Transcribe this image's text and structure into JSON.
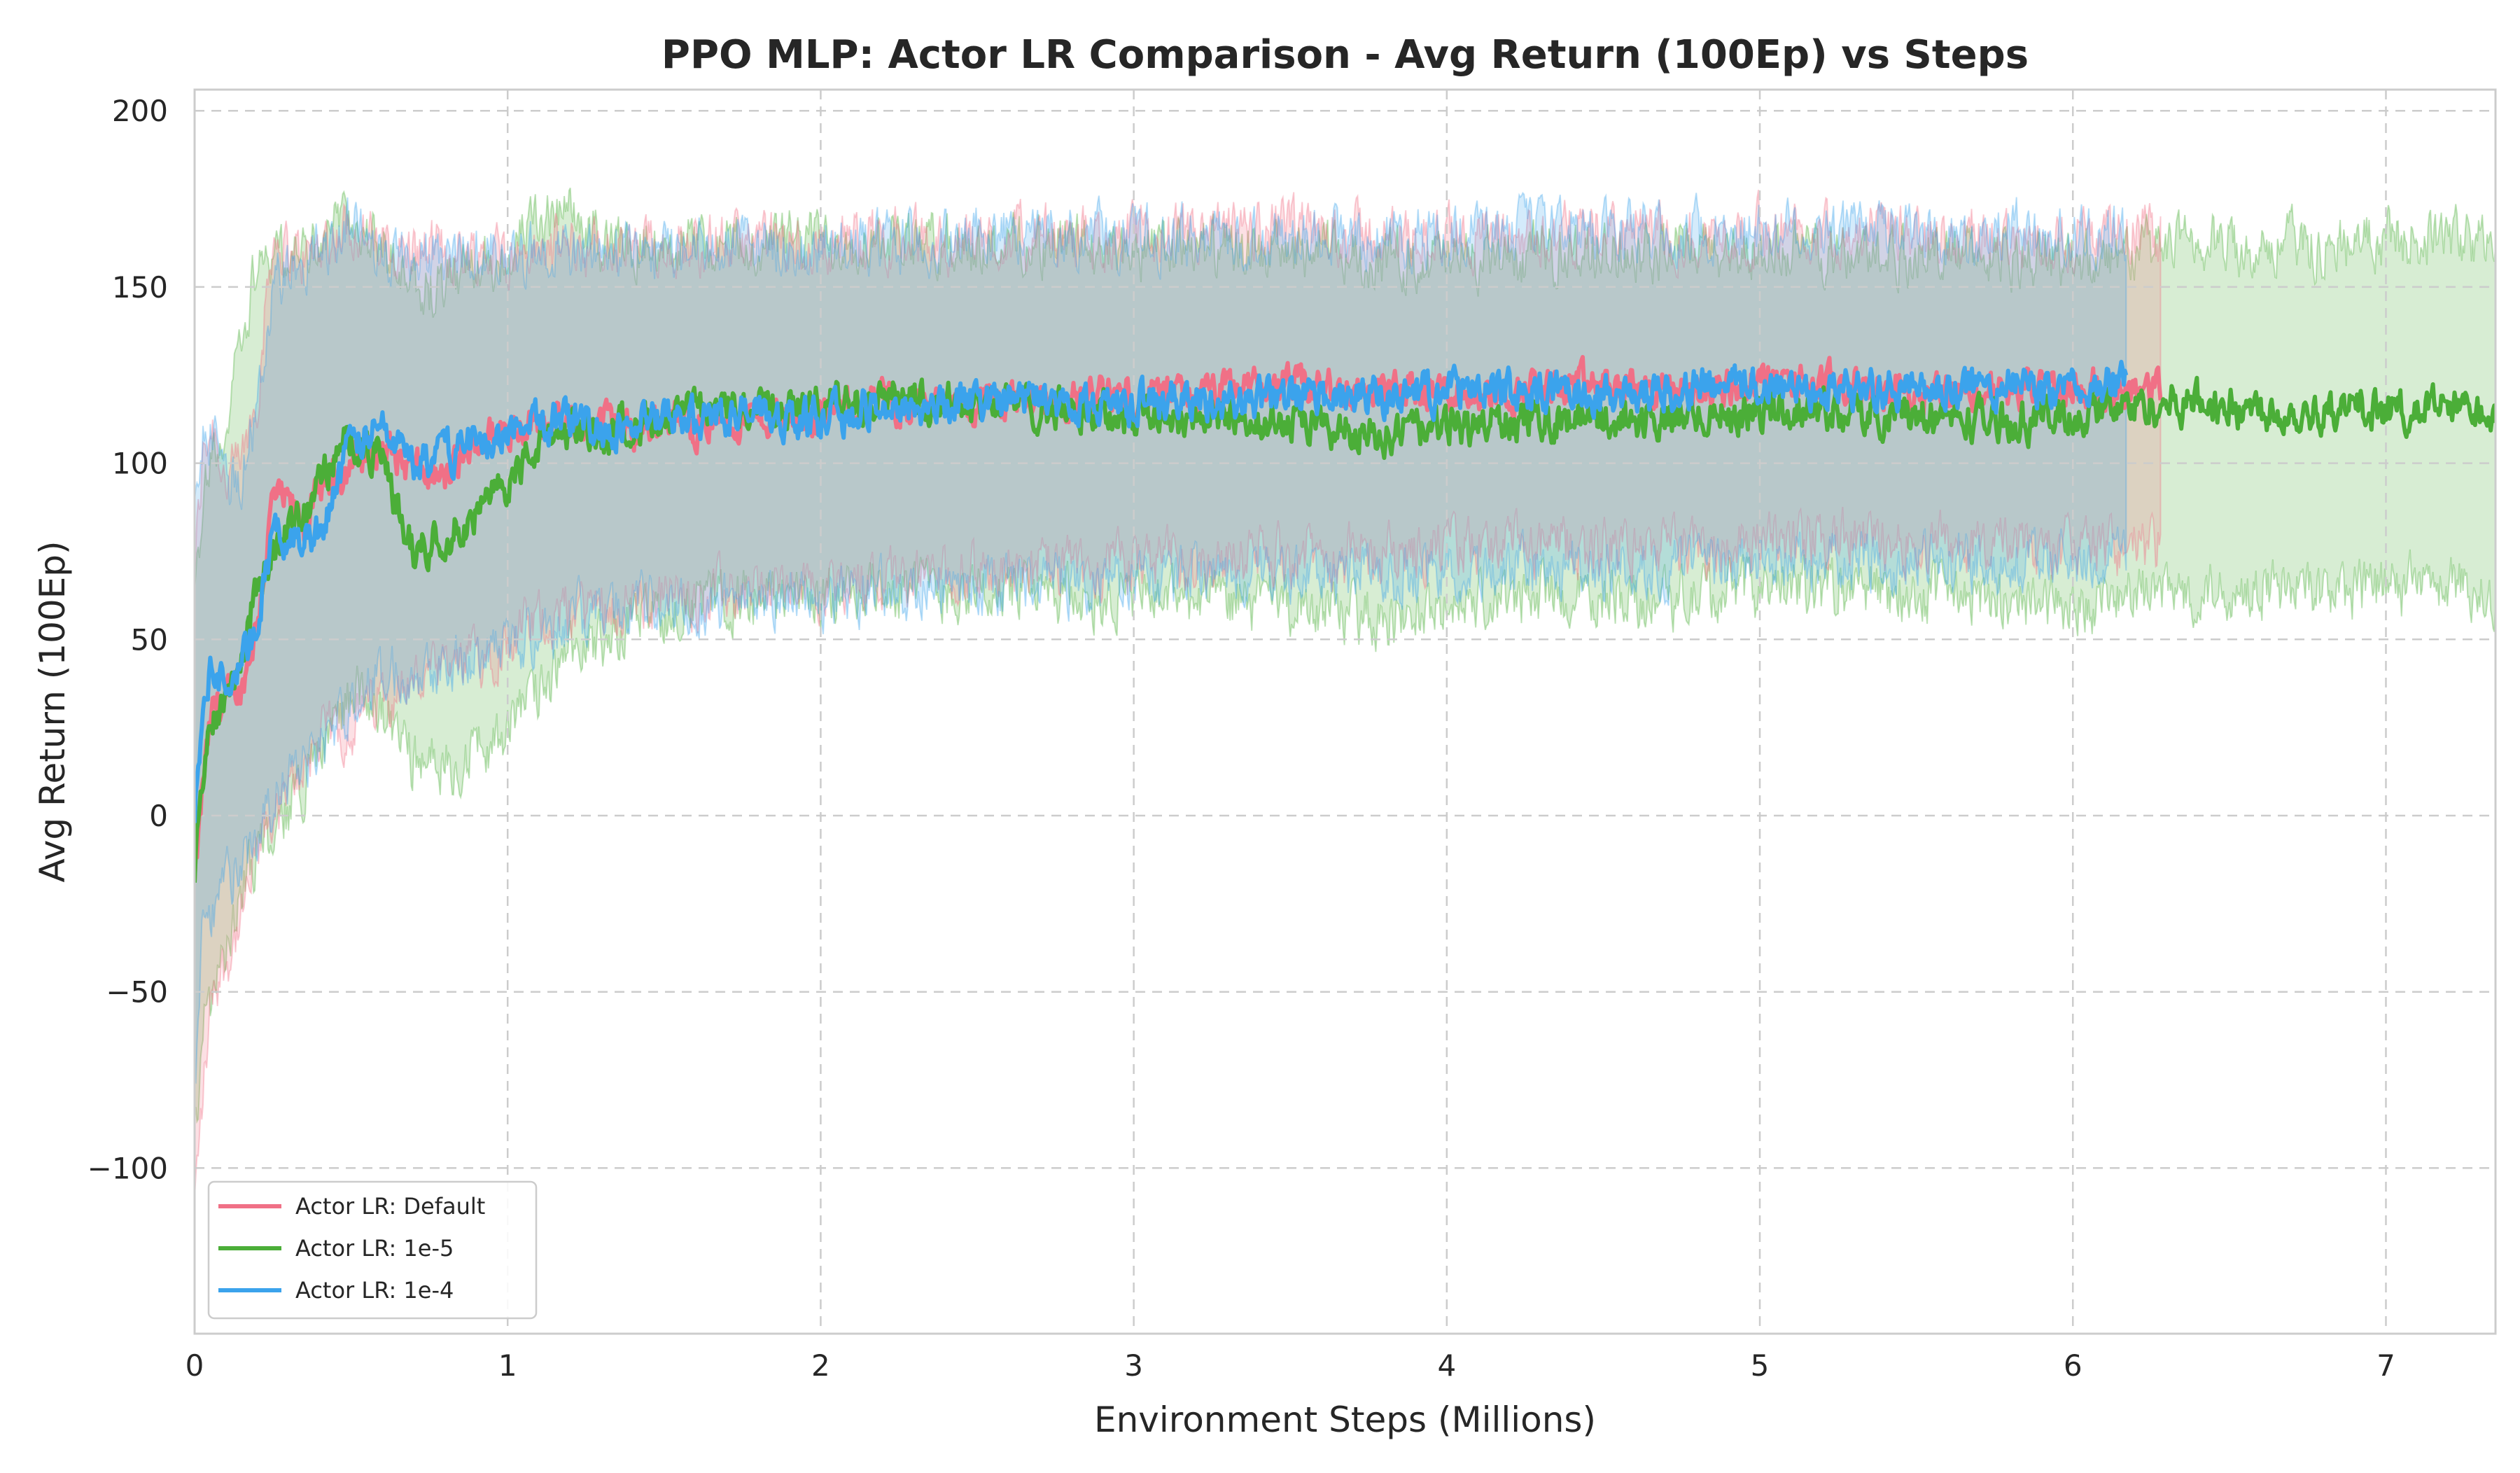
{
  "chart_data": {
    "type": "line",
    "title": "PPO MLP: Actor LR Comparison - Avg Return (100Ep) vs Steps",
    "xlabel": "Environment Steps (Millions)",
    "ylabel": "Avg Return (100Ep)",
    "xlim": [
      0,
      7.35
    ],
    "ylim": [
      -147,
      206
    ],
    "x_ticks": [
      0,
      1,
      2,
      3,
      4,
      5,
      6,
      7
    ],
    "x_tick_labels": [
      "0",
      "1",
      "2",
      "3",
      "4",
      "5",
      "6",
      "7"
    ],
    "y_ticks": [
      -100,
      -50,
      0,
      50,
      100,
      150,
      200
    ],
    "y_tick_labels": [
      "−100",
      "−50",
      "0",
      "50",
      "100",
      "150",
      "200"
    ],
    "grid": true,
    "legend_position": "bottom-left",
    "shaded_band": "mean ± std",
    "series": [
      {
        "name": "Actor LR: Default",
        "color": "#f07086",
        "x": [
          0,
          0.03,
          0.06,
          0.1,
          0.15,
          0.2,
          0.25,
          0.3,
          0.35,
          0.4,
          0.5,
          0.6,
          0.7,
          0.8,
          0.9,
          1.0,
          1.1,
          1.2,
          1.3,
          1.4,
          1.5,
          1.6,
          1.8,
          2.0,
          2.2,
          2.4,
          2.6,
          2.8,
          3.0,
          3.2,
          3.4,
          3.6,
          3.8,
          4.0,
          4.2,
          4.4,
          4.6,
          4.8,
          5.0,
          5.2,
          5.4,
          5.6,
          5.8,
          6.0,
          6.15,
          6.28
        ],
        "mean": [
          -20,
          12,
          30,
          33,
          36,
          55,
          90,
          88,
          82,
          92,
          100,
          105,
          98,
          95,
          106,
          110,
          113,
          110,
          112,
          109,
          113,
          111,
          113,
          114,
          117,
          116,
          118,
          118,
          119,
          119,
          122,
          121,
          120,
          121,
          120,
          122,
          121,
          120,
          123,
          122,
          121,
          121,
          120,
          121,
          122,
          120
        ],
        "upper": [
          70,
          105,
          112,
          95,
          100,
          120,
          165,
          160,
          158,
          162,
          168,
          160,
          160,
          160,
          160,
          160,
          160,
          162,
          160,
          160,
          162,
          162,
          162,
          162,
          164,
          162,
          164,
          164,
          164,
          164,
          166,
          166,
          164,
          165,
          164,
          166,
          166,
          164,
          166,
          166,
          166,
          164,
          164,
          164,
          165,
          165
        ],
        "lower": [
          -110,
          -75,
          -48,
          -42,
          -30,
          -12,
          0,
          5,
          15,
          22,
          25,
          35,
          38,
          40,
          45,
          50,
          55,
          58,
          60,
          60,
          62,
          62,
          64,
          65,
          68,
          68,
          70,
          70,
          72,
          72,
          74,
          74,
          74,
          76,
          76,
          76,
          76,
          76,
          78,
          78,
          78,
          78,
          76,
          76,
          76,
          76
        ]
      },
      {
        "name": "Actor LR: 1e-5",
        "color": "#4bae38",
        "x": [
          0,
          0.03,
          0.06,
          0.1,
          0.15,
          0.2,
          0.25,
          0.3,
          0.35,
          0.4,
          0.5,
          0.6,
          0.7,
          0.8,
          0.9,
          1.0,
          1.1,
          1.2,
          1.3,
          1.4,
          1.5,
          1.6,
          1.8,
          2.0,
          2.2,
          2.4,
          2.6,
          2.8,
          3.0,
          3.2,
          3.4,
          3.6,
          3.8,
          4.0,
          4.2,
          4.4,
          4.6,
          4.8,
          5.0,
          5.2,
          5.4,
          5.6,
          5.8,
          6.0,
          6.2,
          6.4,
          6.6,
          6.8,
          7.0,
          7.2,
          7.35
        ],
        "mean": [
          -15,
          15,
          28,
          35,
          45,
          65,
          75,
          82,
          85,
          95,
          108,
          100,
          75,
          80,
          85,
          95,
          105,
          110,
          108,
          112,
          110,
          115,
          116,
          116,
          120,
          118,
          117,
          115,
          114,
          113,
          112,
          110,
          108,
          110,
          112,
          113,
          112,
          114,
          115,
          115,
          114,
          113,
          112,
          113,
          117,
          117,
          115,
          115,
          115,
          116,
          115
        ],
        "upper": [
          60,
          95,
          105,
          110,
          135,
          158,
          160,
          158,
          160,
          164,
          170,
          160,
          150,
          150,
          155,
          160,
          168,
          170,
          162,
          162,
          164,
          162,
          162,
          164,
          164,
          162,
          162,
          162,
          160,
          160,
          160,
          160,
          158,
          158,
          158,
          160,
          160,
          160,
          160,
          160,
          160,
          160,
          158,
          158,
          160,
          162,
          162,
          162,
          164,
          164,
          162
        ],
        "lower": [
          -90,
          -60,
          -50,
          -42,
          -22,
          -10,
          -5,
          2,
          10,
          18,
          35,
          30,
          15,
          15,
          18,
          25,
          35,
          45,
          50,
          55,
          58,
          60,
          62,
          62,
          65,
          64,
          64,
          62,
          62,
          62,
          60,
          58,
          56,
          58,
          62,
          62,
          62,
          62,
          64,
          64,
          64,
          62,
          60,
          60,
          62,
          64,
          64,
          64,
          64,
          66,
          62
        ]
      },
      {
        "name": "Actor LR: 1e-4",
        "color": "#3ba3ec",
        "x": [
          0,
          0.03,
          0.06,
          0.1,
          0.15,
          0.2,
          0.25,
          0.3,
          0.35,
          0.4,
          0.5,
          0.6,
          0.7,
          0.8,
          0.9,
          1.0,
          1.1,
          1.2,
          1.3,
          1.4,
          1.5,
          1.6,
          1.8,
          2.0,
          2.2,
          2.4,
          2.6,
          2.8,
          3.0,
          3.2,
          3.4,
          3.6,
          3.8,
          4.0,
          4.2,
          4.4,
          4.6,
          4.8,
          5.0,
          5.2,
          5.4,
          5.6,
          5.8,
          6.0,
          6.17
        ],
        "mean": [
          0,
          38,
          42,
          38,
          42,
          55,
          78,
          80,
          78,
          82,
          105,
          110,
          100,
          103,
          106,
          108,
          112,
          112,
          110,
          111,
          112,
          113,
          114,
          112,
          116,
          116,
          119,
          117,
          117,
          118,
          118,
          119,
          118,
          121,
          120,
          121,
          120,
          122,
          122,
          121,
          121,
          120,
          122,
          120,
          124
        ],
        "upper": [
          85,
          108,
          110,
          92,
          98,
          115,
          150,
          155,
          155,
          160,
          168,
          160,
          158,
          158,
          160,
          160,
          160,
          160,
          160,
          160,
          160,
          160,
          162,
          160,
          162,
          162,
          166,
          164,
          164,
          164,
          164,
          166,
          164,
          166,
          166,
          166,
          166,
          166,
          166,
          166,
          166,
          164,
          166,
          164,
          164
        ],
        "lower": [
          -80,
          -25,
          -25,
          -18,
          -15,
          -8,
          5,
          10,
          12,
          18,
          32,
          40,
          42,
          44,
          46,
          48,
          52,
          56,
          58,
          60,
          60,
          60,
          62,
          62,
          64,
          64,
          66,
          66,
          66,
          68,
          68,
          68,
          68,
          70,
          70,
          70,
          70,
          70,
          72,
          72,
          72,
          72,
          72,
          72,
          74
        ]
      }
    ]
  }
}
